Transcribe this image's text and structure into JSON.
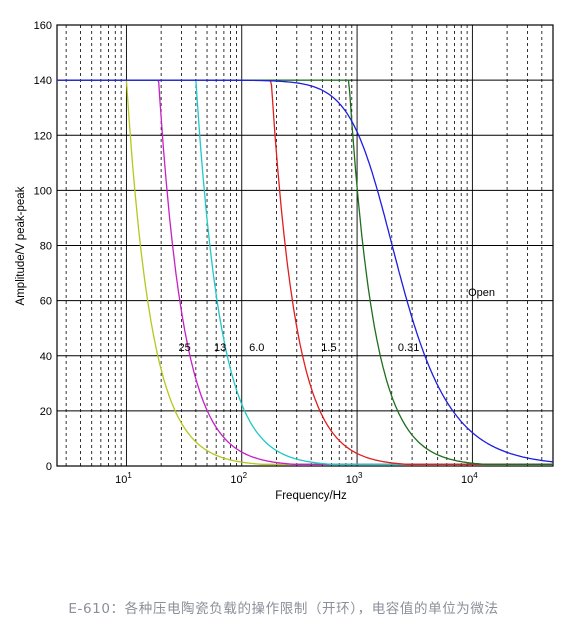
{
  "caption": "E-610：各种压电陶瓷负载的操作限制（开环），电容值的单位为微法",
  "chart_data": {
    "type": "line",
    "title": "",
    "xlabel": "Frequency/Hz",
    "ylabel": "Amplitude/V peak-peak",
    "xscale": "log",
    "xlim": [
      2.5,
      50000
    ],
    "ylim": [
      0,
      160
    ],
    "yticks": [
      0,
      20,
      40,
      60,
      80,
      100,
      120,
      140,
      160
    ],
    "xtick_labels": [
      {
        "base": "10",
        "exp": "1",
        "value": 10
      },
      {
        "base": "10",
        "exp": "2",
        "value": 100
      },
      {
        "base": "10",
        "exp": "3",
        "value": 1000
      },
      {
        "base": "10",
        "exp": "4",
        "value": 10000
      }
    ],
    "grid": true,
    "plateau": 140,
    "series": [
      {
        "name": "25",
        "color": "#b5c81e",
        "corner_hz": 10,
        "label_at": [
          32,
          42
        ]
      },
      {
        "name": "13",
        "color": "#c81ec8",
        "corner_hz": 19,
        "label_at": [
          65,
          42
        ]
      },
      {
        "name": "6.0",
        "color": "#1ec8c8",
        "corner_hz": 40,
        "label_at": [
          135,
          42
        ]
      },
      {
        "name": "1.5",
        "color": "#e01e1e",
        "corner_hz": 180,
        "label_at": [
          570,
          42
        ]
      },
      {
        "name": "0.31",
        "color": "#1e6e1e",
        "corner_hz": 850,
        "label_at": [
          2800,
          42
        ]
      },
      {
        "name": "Open",
        "color": "#1e1ee0",
        "corner_hz": 1000,
        "label_at": [
          12000,
          62
        ],
        "soft_knee": true
      }
    ]
  }
}
